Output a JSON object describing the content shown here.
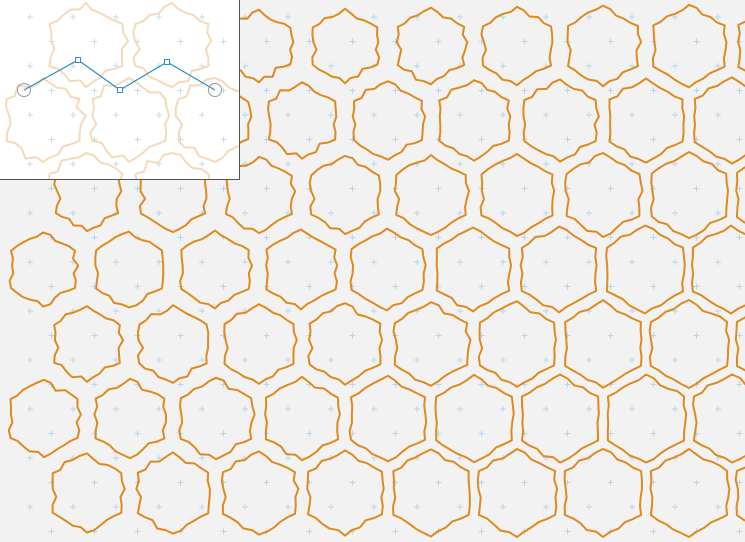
{
  "colors": {
    "background": "#f2f2f2",
    "tile_stroke": "#e08a1e",
    "grid_marker": "#b7d6ee",
    "editor_background": "#ffffff",
    "editor_border": "#555555",
    "editor_tile_stroke": "#f6d9b8",
    "editor_grid_marker": "#c3ddf0",
    "control_curve": "#2c8fc8",
    "control_handle": "#2c8fc8",
    "end_handle": "#999999"
  },
  "icons": {
    "grid_marker": "plus-icon",
    "control_point": "square-handle-icon",
    "end_point": "circle-handle-icon"
  },
  "tiling": {
    "shape": "hexagon",
    "edge_control_points": 4
  }
}
